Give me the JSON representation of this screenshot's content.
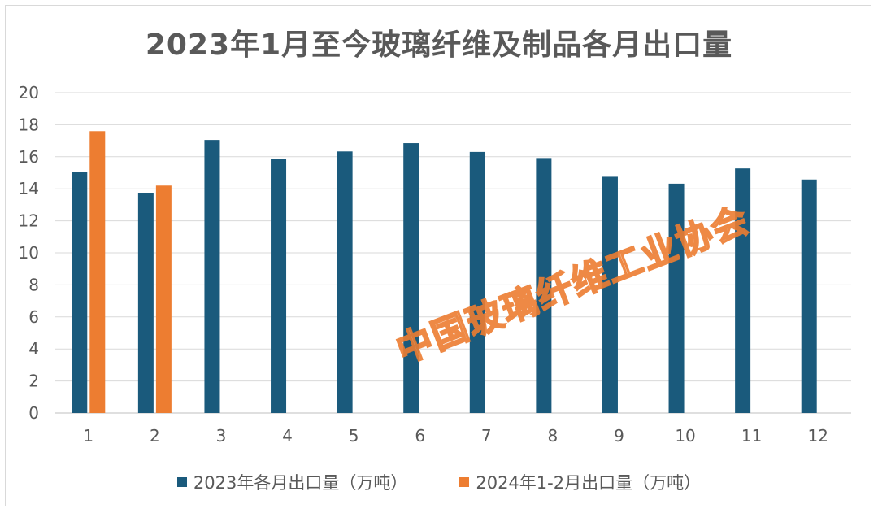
{
  "chart_data": {
    "type": "bar",
    "title": "2023年1月至今玻璃纤维及制品各月出口量",
    "categories": [
      "1",
      "2",
      "3",
      "4",
      "5",
      "6",
      "7",
      "8",
      "9",
      "10",
      "11",
      "12"
    ],
    "series": [
      {
        "name": "2023年各月出口量（万吨）",
        "color": "#1a5a7c",
        "values": [
          15.05,
          13.72,
          17.05,
          15.88,
          16.33,
          16.85,
          16.3,
          15.92,
          14.75,
          14.32,
          15.27,
          14.58
        ]
      },
      {
        "name": "2024年1-2月出口量（万吨）",
        "color": "#ed7d31",
        "values": [
          17.6,
          14.2,
          null,
          null,
          null,
          null,
          null,
          null,
          null,
          null,
          null,
          null
        ]
      }
    ],
    "ylim": [
      0,
      20
    ],
    "yticks": [
      0,
      2,
      4,
      6,
      8,
      10,
      12,
      14,
      16,
      18,
      20
    ],
    "grid": true,
    "legend": "bottom",
    "xlabel": "",
    "ylabel": ""
  },
  "watermark": "中国玻璃纤维工业协会"
}
